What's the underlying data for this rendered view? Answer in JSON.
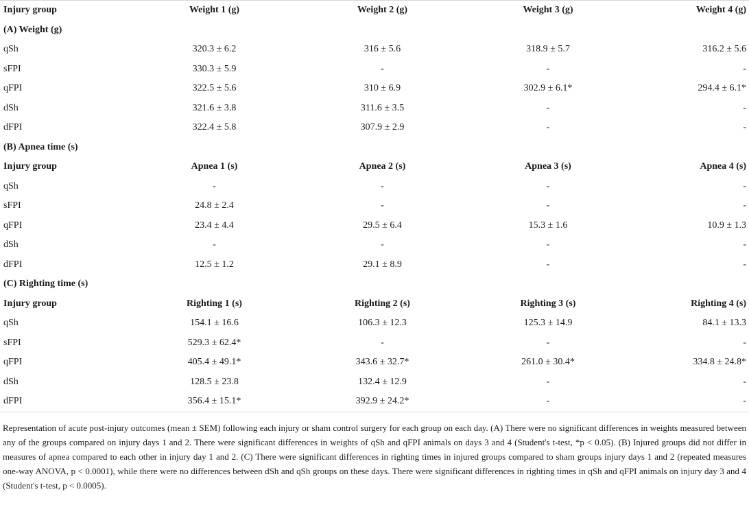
{
  "table": {
    "header": [
      "Injury group",
      "Weight 1 (g)",
      "Weight 2 (g)",
      "Weight 3 (g)",
      "Weight 4 (g)"
    ],
    "sections": [
      {
        "title": "(A) Weight (g)",
        "header": null,
        "rows": [
          [
            "qSh",
            "320.3 ± 6.2",
            "316 ± 5.6",
            "318.9 ± 5.7",
            "316.2 ± 5.6"
          ],
          [
            "sFPI",
            "330.3 ± 5.9",
            "-",
            "-",
            "-"
          ],
          [
            "qFPI",
            "322.5 ± 5.6",
            "310 ± 6.9",
            "302.9 ± 6.1*",
            "294.4 ± 6.1*"
          ],
          [
            "dSh",
            "321.6 ± 3.8",
            "311.6 ± 3.5",
            "-",
            "-"
          ],
          [
            "dFPI",
            "322.4 ± 5.8",
            "307.9 ± 2.9",
            "-",
            "-"
          ]
        ]
      },
      {
        "title": "(B) Apnea time (s)",
        "header": [
          "Injury group",
          "Apnea 1 (s)",
          "Apnea 2 (s)",
          "Apnea 3 (s)",
          "Apnea 4 (s)"
        ],
        "rows": [
          [
            "qSh",
            "-",
            "-",
            "-",
            "-"
          ],
          [
            "sFPI",
            "24.8 ± 2.4",
            "-",
            "-",
            "-"
          ],
          [
            "qFPI",
            "23.4 ± 4.4",
            "29.5 ± 6.4",
            "15.3 ± 1.6",
            "10.9 ± 1.3"
          ],
          [
            "dSh",
            "-",
            "-",
            "-",
            "-"
          ],
          [
            "dFPI",
            "12.5 ± 1.2",
            "29.1 ± 8.9",
            "-",
            "-"
          ]
        ]
      },
      {
        "title": "(C) Righting time (s)",
        "header": [
          "Injury group",
          "Righting 1 (s)",
          "Righting 2 (s)",
          "Righting 3 (s)",
          "Righting 4 (s)"
        ],
        "rows": [
          [
            "qSh",
            "154.1 ± 16.6",
            "106.3 ± 12.3",
            "125.3 ± 14.9",
            "84.1 ± 13.3"
          ],
          [
            "sFPI",
            "529.3 ± 62.4*",
            "-",
            "-",
            "-"
          ],
          [
            "qFPI",
            "405.4 ± 49.1*",
            "343.6 ± 32.7*",
            "261.0 ± 30.4*",
            "334.8 ± 24.8*"
          ],
          [
            "dSh",
            "128.5 ± 23.8",
            "132.4 ± 12.9",
            "-",
            "-"
          ],
          [
            "dFPI",
            "356.4 ± 15.1*",
            "392.9 ± 24.2*",
            "-",
            "-"
          ]
        ]
      }
    ]
  },
  "caption": "Representation of acute post-injury outcomes (mean ± SEM) following each injury or sham control surgery for each group on each day. (A) There were no significant differences in weights measured between any of the groups compared on injury days 1 and 2. There were significant differences in weights of qSh and qFPI animals on days 3 and 4 (Student's t-test, *p < 0.05). (B) Injured groups did not differ in measures of apnea compared to each other in injury day 1 and 2. (C) There were significant differences in righting times in injured groups compared to sham groups injury days 1 and 2 (repeated measures one-way ANOVA, p < 0.0001), while there were no differences between dSh and qSh groups on these days. There were significant differences in righting times in qSh and qFPI animals on injury day 3 and 4 (Student's t-test, p < 0.0005)."
}
